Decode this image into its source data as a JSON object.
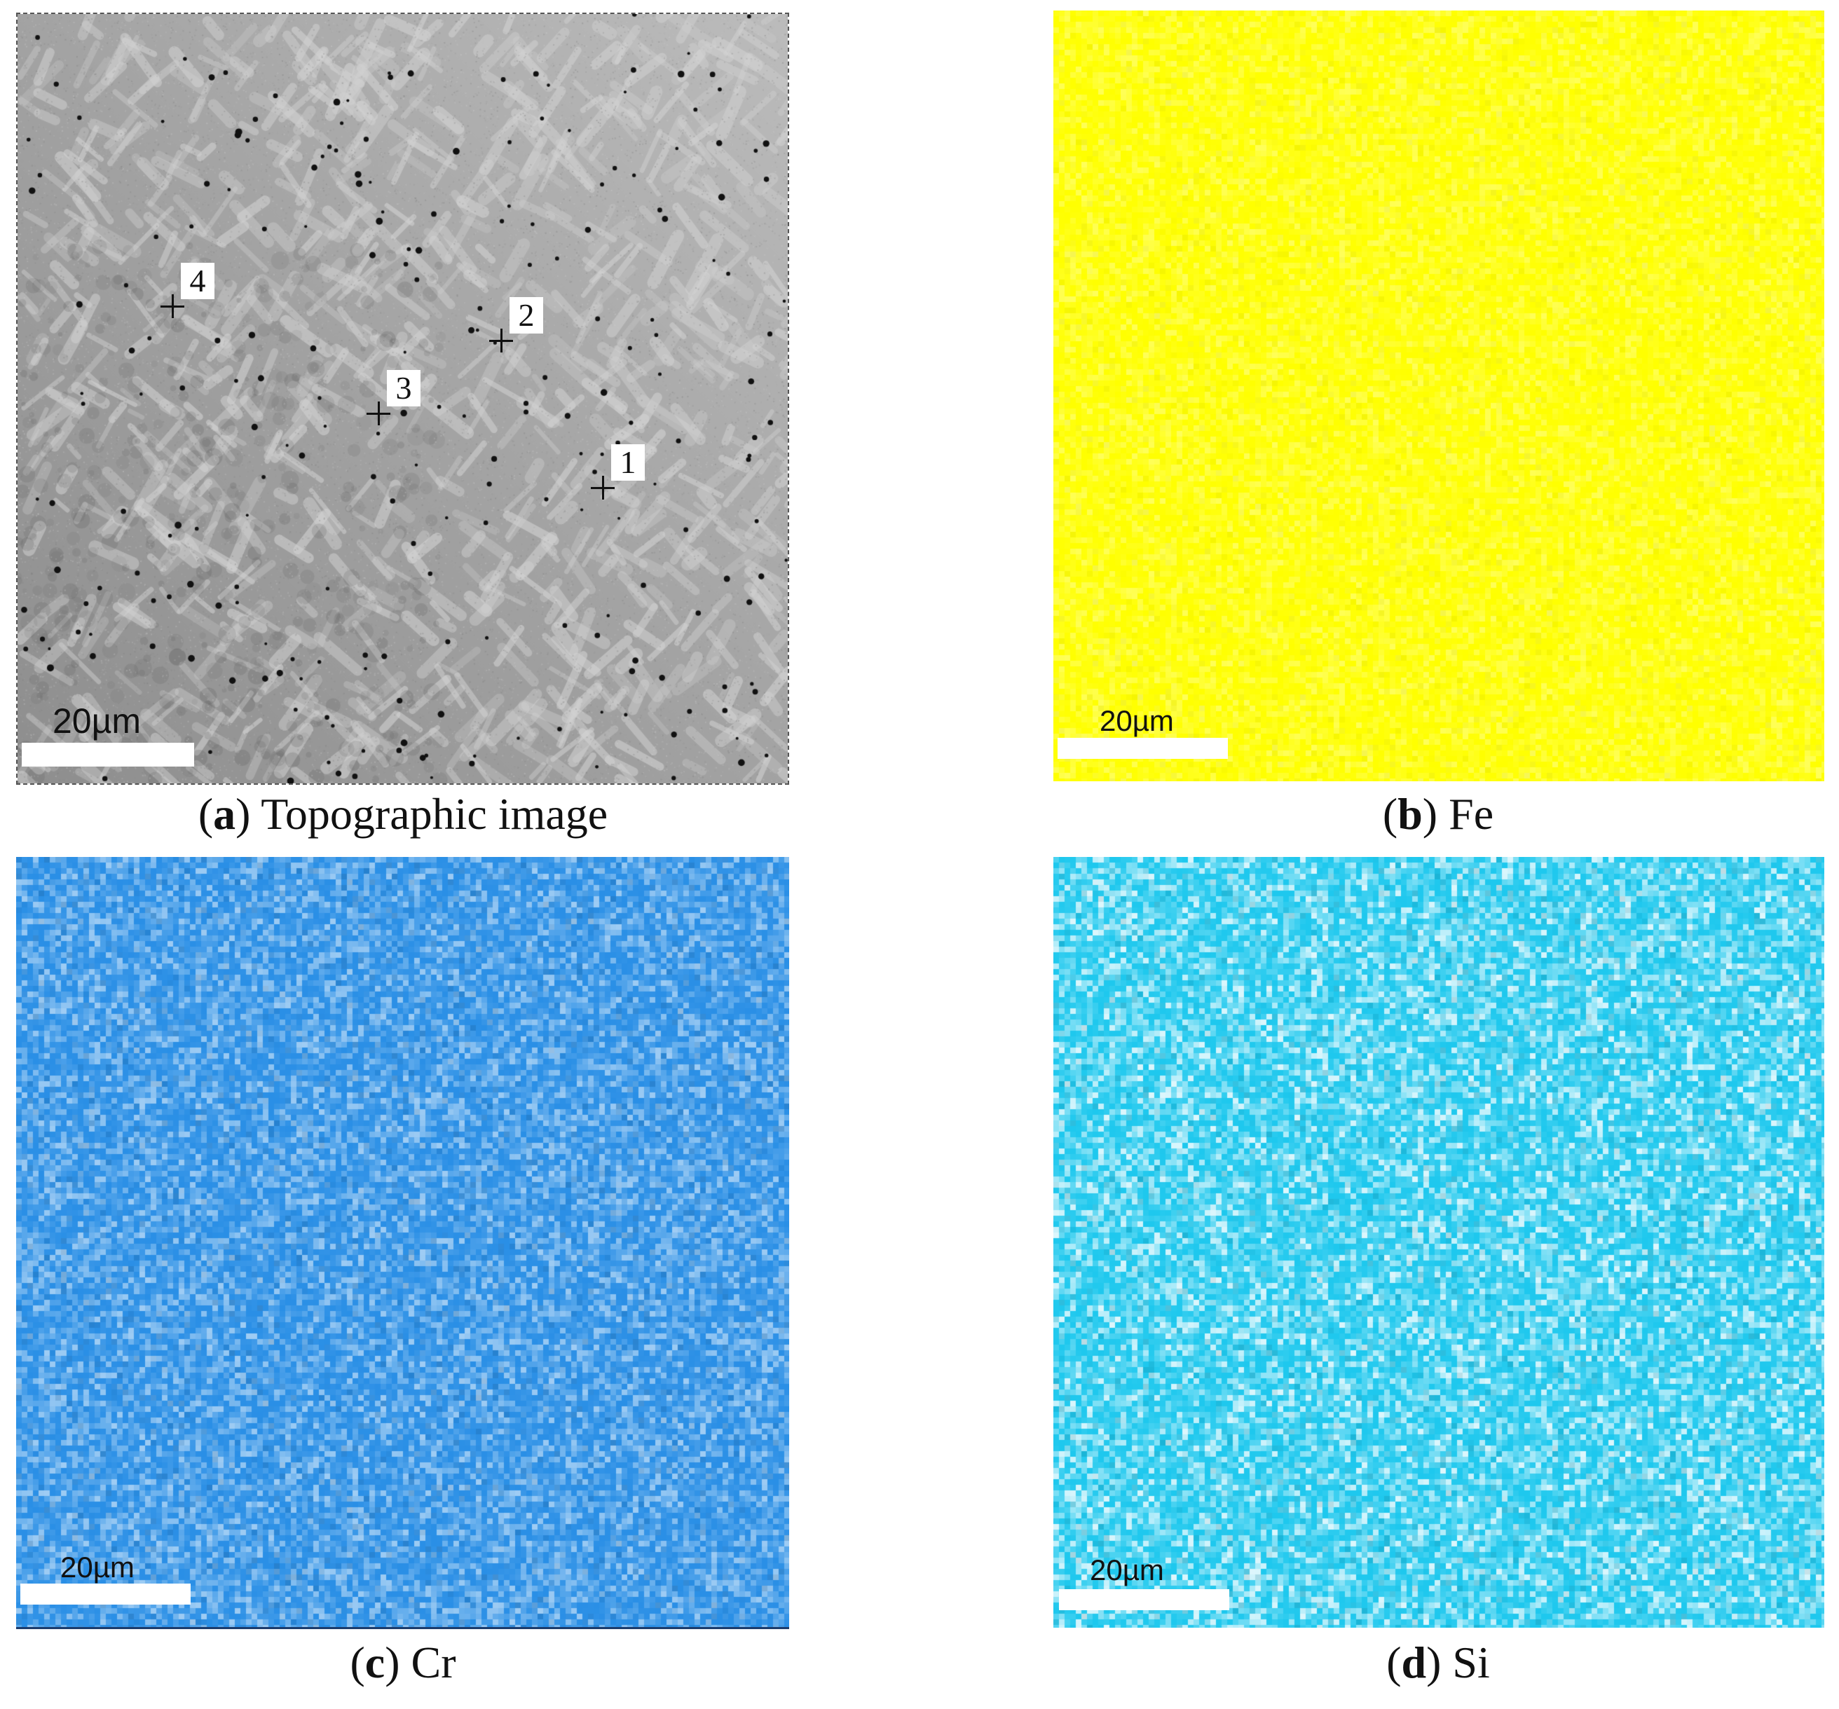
{
  "panels": {
    "a": {
      "caption_letter": "a",
      "caption_text": "Topographic image",
      "scale_label": "20µm",
      "markers": [
        {
          "label": "1"
        },
        {
          "label": "2"
        },
        {
          "label": "3"
        },
        {
          "label": "4"
        }
      ]
    },
    "b": {
      "caption_letter": "b",
      "caption_text": "Fe",
      "scale_label": "20µm"
    },
    "c": {
      "caption_letter": "c",
      "caption_text": "Cr",
      "scale_label": "20µm"
    },
    "d": {
      "caption_letter": "d",
      "caption_text": "Si",
      "scale_label": "20µm"
    }
  },
  "colors": {
    "fe_map": "#ffff00",
    "cr_map": "#2a8fe6",
    "si_map": "#1ec8ee",
    "topo_base": "#a6a6a6"
  }
}
